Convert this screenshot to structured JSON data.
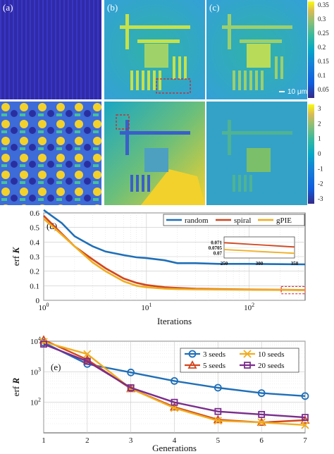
{
  "figure": {
    "images": {
      "panels": [
        {
          "label": "(a)"
        },
        {
          "label": "(b)"
        },
        {
          "label": "(c)"
        }
      ],
      "scale_bar": "10 μm",
      "colorbar_top": {
        "ticks": [
          "0.35",
          "0.3",
          "0.25",
          "0.2",
          "0.15",
          "0.1",
          "0.05"
        ],
        "colormap": "parula"
      },
      "colorbar_bottom": {
        "ticks": [
          "3",
          "2",
          "1",
          "0",
          "-1",
          "-2",
          "-3"
        ],
        "colormap": "parula"
      },
      "colors": {
        "dark_blue": "#3d2fc6",
        "yellow": "#f2d12c",
        "teal": "#2fb3a6",
        "inset_box": "#d11f2a"
      }
    }
  },
  "chart_data": [
    {
      "panel_label": "(d)",
      "type": "line",
      "xscale": "log",
      "xlabel": "Iterations",
      "ylabel": "erf K",
      "xlim": [
        1,
        350
      ],
      "ylim": [
        0,
        0.6
      ],
      "xticks": [
        "10^0",
        "10^1",
        "10^2"
      ],
      "yticks": [
        "0",
        "0.1",
        "0.2",
        "0.3",
        "0.4",
        "0.5",
        "0.6"
      ],
      "grid": true,
      "legend_position": "top-right",
      "series": [
        {
          "name": "random",
          "color": "#1f6fb8",
          "points": [
            [
              1,
              0.62
            ],
            [
              1.5,
              0.53
            ],
            [
              2,
              0.44
            ],
            [
              3,
              0.37
            ],
            [
              4,
              0.335
            ],
            [
              6,
              0.31
            ],
            [
              8,
              0.295
            ],
            [
              10,
              0.29
            ],
            [
              15,
              0.275
            ],
            [
              20,
              0.255
            ],
            [
              30,
              0.255
            ],
            [
              50,
              0.25
            ],
            [
              100,
              0.25
            ],
            [
              200,
              0.248
            ],
            [
              350,
              0.247
            ]
          ]
        },
        {
          "name": "spiral",
          "color": "#d1461f",
          "points": [
            [
              1,
              0.58
            ],
            [
              2,
              0.37
            ],
            [
              3,
              0.28
            ],
            [
              4,
              0.22
            ],
            [
              6,
              0.15
            ],
            [
              8,
              0.12
            ],
            [
              10,
              0.105
            ],
            [
              15,
              0.09
            ],
            [
              20,
              0.085
            ],
            [
              30,
              0.08
            ],
            [
              50,
              0.077
            ],
            [
              100,
              0.074
            ],
            [
              200,
              0.072
            ],
            [
              350,
              0.0705
            ]
          ]
        },
        {
          "name": "gPIE",
          "color": "#f0ad1e",
          "points": [
            [
              1,
              0.56
            ],
            [
              1.5,
              0.45
            ],
            [
              2,
              0.37
            ],
            [
              3,
              0.26
            ],
            [
              4,
              0.2
            ],
            [
              6,
              0.13
            ],
            [
              8,
              0.1
            ],
            [
              10,
              0.09
            ],
            [
              15,
              0.08
            ],
            [
              20,
              0.077
            ],
            [
              30,
              0.075
            ],
            [
              50,
              0.074
            ],
            [
              100,
              0.072
            ],
            [
              200,
              0.071
            ],
            [
              350,
              0.07
            ]
          ]
        }
      ],
      "inset": {
        "xlim": [
          250,
          350
        ],
        "ylim": [
          0.0695,
          0.0715
        ],
        "xticks": [
          "250",
          "300",
          "350"
        ],
        "yticks": [
          "0.071",
          "0.0705",
          "0.07"
        ],
        "series": [
          {
            "name": "spiral",
            "values": [
              [
                250,
                0.07095
              ],
              [
                350,
                0.07055
              ]
            ]
          },
          {
            "name": "gPIE",
            "values": [
              [
                250,
                0.0703
              ],
              [
                350,
                0.06995
              ]
            ]
          }
        ]
      }
    },
    {
      "panel_label": "(e)",
      "type": "line",
      "yscale": "log",
      "xlabel": "Generations",
      "ylabel": "erf R",
      "xlim": [
        1,
        7
      ],
      "ylim": [
        10,
        10000
      ],
      "xticks": [
        "1",
        "2",
        "3",
        "4",
        "5",
        "6",
        "7"
      ],
      "yticks": [
        "10^2",
        "10^3",
        "10^4"
      ],
      "grid": true,
      "legend_position": "top-right",
      "series": [
        {
          "name": "3 seeds",
          "color": "#1f6fb8",
          "marker": "circle",
          "x": [
            1,
            2,
            3,
            4,
            5,
            6,
            7
          ],
          "values": [
            9000,
            1800,
            950,
            500,
            300,
            200,
            160
          ]
        },
        {
          "name": "5 seeds",
          "color": "#d1461f",
          "marker": "triangle",
          "x": [
            1,
            2,
            3,
            4,
            5,
            6,
            7
          ],
          "values": [
            11000,
            2500,
            280,
            70,
            27,
            22,
            26
          ]
        },
        {
          "name": "10 seeds",
          "color": "#f0ad1e",
          "marker": "x",
          "x": [
            1,
            2,
            3,
            4,
            5,
            6,
            7
          ],
          "values": [
            9500,
            3800,
            280,
            65,
            25,
            22,
            18
          ]
        },
        {
          "name": "20 seeds",
          "color": "#7a2d8c",
          "marker": "square",
          "x": [
            1,
            2,
            3,
            4,
            5,
            6,
            7
          ],
          "values": [
            8000,
            2200,
            300,
            100,
            50,
            40,
            32
          ]
        }
      ]
    }
  ]
}
